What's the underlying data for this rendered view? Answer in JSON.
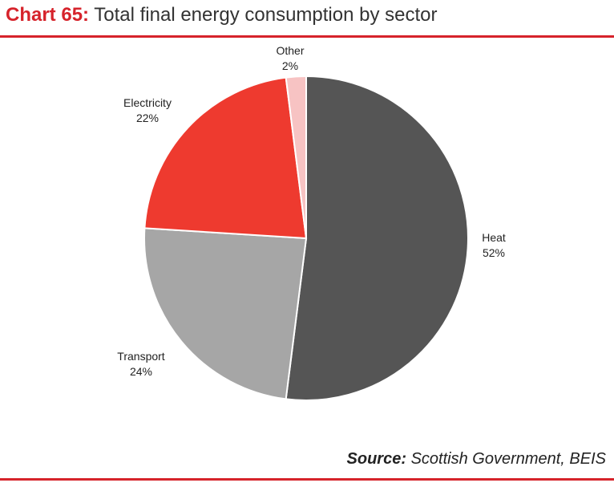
{
  "header": {
    "chart_number": "Chart 65:",
    "title": "Total final energy consumption by sector"
  },
  "source": {
    "label": "Source:",
    "text": "Scottish Government, BEIS"
  },
  "colors": {
    "accent": "#d6232b"
  },
  "chart_data": {
    "type": "pie",
    "title": "Total final energy consumption by sector",
    "start_angle_deg": 0,
    "direction": "clockwise",
    "slices": [
      {
        "label": "Heat",
        "percent_label": "52%",
        "value": 52,
        "color": "#555555"
      },
      {
        "label": "Transport",
        "percent_label": "24%",
        "value": 24,
        "color": "#a6a6a6"
      },
      {
        "label": "Electricity",
        "percent_label": "22%",
        "value": 22,
        "color": "#ee3a2f"
      },
      {
        "label": "Other",
        "percent_label": "2%",
        "value": 2,
        "color": "#f7c3c3"
      }
    ]
  }
}
